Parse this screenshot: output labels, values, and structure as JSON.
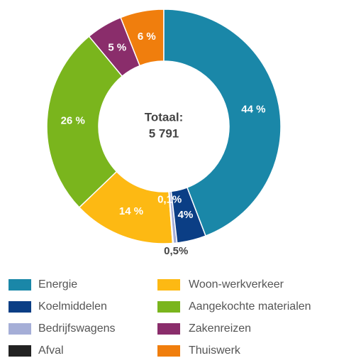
{
  "chart_data": {
    "type": "donut",
    "center_text": [
      "Totaal:",
      "5 791"
    ],
    "categories": [
      "Energie",
      "Koelmiddelen",
      "Bedrijfswagens",
      "Afval",
      "Woon-werkverkeer",
      "Aangekochte materialen",
      "Zakenreizen",
      "Thuiswerk"
    ],
    "values": [
      44,
      4,
      0.5,
      0.1,
      14,
      26,
      5,
      6
    ],
    "value_labels": [
      "44 %",
      "4%",
      "0,5%",
      "0,1%",
      "14 %",
      "26 %",
      "5 %",
      "6 %"
    ],
    "colors": [
      "#1a87a8",
      "#0b3e85",
      "#a5aed7",
      "#222222",
      "#fdb913",
      "#7ab51d",
      "#8a2d6b",
      "#f07e0d"
    ],
    "legend": "bottom"
  }
}
